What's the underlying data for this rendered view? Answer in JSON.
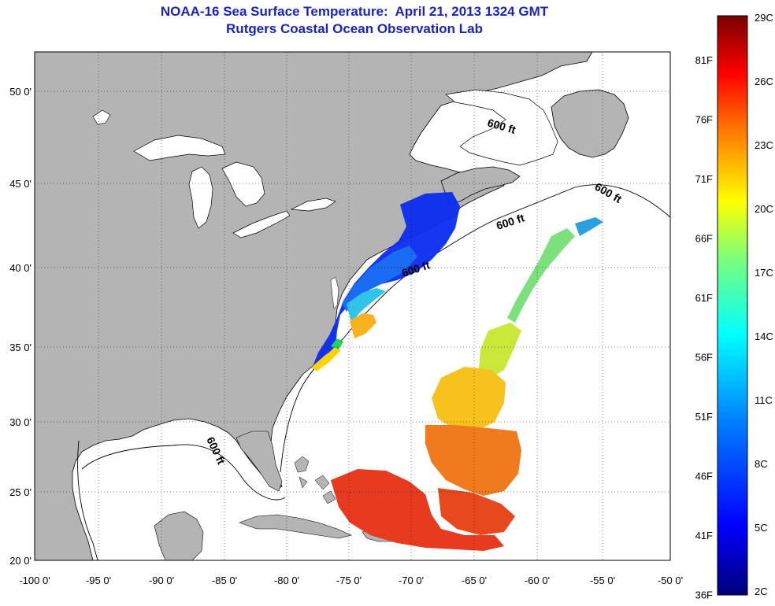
{
  "title": {
    "line1": "NOAA-16 Sea Surface Temperature:  April 21, 2013 1324 GMT",
    "line2": "Rutgers Coastal Ocean Observation Lab"
  },
  "map": {
    "lat_labels": [
      "50 0'",
      "45 0'",
      "40 0'",
      "35 0'",
      "30 0'",
      "25 0'",
      "20 0'"
    ],
    "lon_labels": [
      "-100 0'",
      "-95 0'",
      "-90 0'",
      "-85 0'",
      "-80 0'",
      "-75 0'",
      "-70 0'",
      "-65 0'",
      "-60 0'",
      "-55 0'",
      "-50 0'"
    ],
    "isobath_labels": [
      "600 ft",
      "600 ft",
      "600 ft",
      "600 ft",
      "600 ft"
    ],
    "land_color": "#b4b4b4",
    "water_color": "#ffffff"
  },
  "colorbar": {
    "fahrenheit_labels": [
      "81F",
      "76F",
      "71F",
      "66F",
      "61F",
      "56F",
      "51F",
      "46F",
      "41F",
      "36F"
    ],
    "celsius_labels": [
      "29C",
      "26C",
      "23C",
      "20C",
      "17C",
      "14C",
      "11C",
      "8C",
      "5C",
      "2C"
    ],
    "colors": [
      "#7a0000",
      "#ff0000",
      "#ff7a00",
      "#ffff00",
      "#7aff7a",
      "#00ffff",
      "#0080ff",
      "#0000ff",
      "#00007a"
    ]
  }
}
